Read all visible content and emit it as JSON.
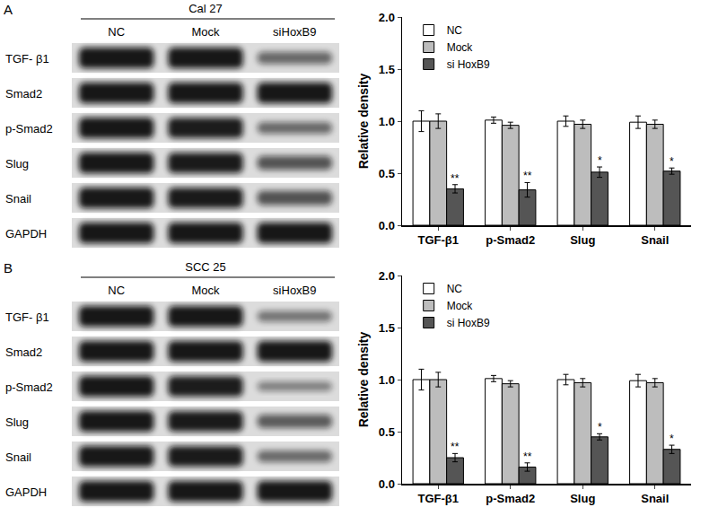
{
  "chart_data": [
    {
      "type": "bar",
      "categories": [
        "TGF-β1",
        "p-Smad2",
        "Slug",
        "Snail"
      ],
      "y_label": "Relative density",
      "ylim": [
        0,
        2
      ],
      "yticks": [
        {
          "value": 0,
          "label": "0.0"
        },
        {
          "value": 0.5,
          "label": "0.5"
        },
        {
          "value": 1,
          "label": "1.0"
        },
        {
          "value": 1.5,
          "label": "1.5"
        },
        {
          "value": 2,
          "label": "2.0"
        }
      ],
      "grid": false,
      "legend": "upper left",
      "series": [
        {
          "name": "NC",
          "color": "#ffffff",
          "values": [
            1.0,
            1.01,
            1.0,
            0.99
          ],
          "errors": [
            0.1,
            0.03,
            0.05,
            0.06
          ]
        },
        {
          "name": "Mock",
          "color": "#bdbdbd",
          "values": [
            1.0,
            0.96,
            0.97,
            0.97
          ],
          "errors": [
            0.07,
            0.03,
            0.04,
            0.04
          ]
        },
        {
          "name": "si HoxB9",
          "color": "#555555",
          "values": [
            0.35,
            0.34,
            0.51,
            0.52
          ],
          "errors": [
            0.04,
            0.07,
            0.05,
            0.03
          ],
          "significance": [
            "**",
            "**",
            "*",
            "*"
          ]
        }
      ]
    },
    {
      "type": "bar",
      "categories": [
        "TGF-β1",
        "p-Smad2",
        "Slug",
        "Snail"
      ],
      "y_label": "Relative density",
      "ylim": [
        0,
        2
      ],
      "yticks": [
        {
          "value": 0,
          "label": "0.0"
        },
        {
          "value": 0.5,
          "label": "0.5"
        },
        {
          "value": 1,
          "label": "1.0"
        },
        {
          "value": 1.5,
          "label": "1.5"
        },
        {
          "value": 2,
          "label": "2.0"
        }
      ],
      "grid": false,
      "legend": "upper left",
      "series": [
        {
          "name": "NC",
          "color": "#ffffff",
          "values": [
            1.0,
            1.01,
            1.0,
            0.99
          ],
          "errors": [
            0.1,
            0.03,
            0.05,
            0.06
          ]
        },
        {
          "name": "Mock",
          "color": "#bdbdbd",
          "values": [
            1.0,
            0.96,
            0.97,
            0.97
          ],
          "errors": [
            0.07,
            0.03,
            0.04,
            0.04
          ]
        },
        {
          "name": "si HoxB9",
          "color": "#555555",
          "values": [
            0.25,
            0.16,
            0.45,
            0.33
          ],
          "errors": [
            0.04,
            0.04,
            0.03,
            0.04
          ],
          "significance": [
            "**",
            "**",
            "*",
            "*"
          ]
        }
      ]
    }
  ],
  "blots": [
    {
      "panel": "A",
      "cell_line": "Cal 27",
      "lanes": [
        "NC",
        "Mock",
        "siHoxB9"
      ],
      "proteins": [
        "TGF- β1",
        "Smad2",
        "p-Smad2",
        "Slug",
        "Snail",
        "GAPDH"
      ]
    },
    {
      "panel": "B",
      "cell_line": "SCC 25",
      "lanes": [
        "NC",
        "Mock",
        "siHoxB9"
      ],
      "proteins": [
        "TGF- β1",
        "Smad2",
        "p-Smad2",
        "Slug",
        "Snail",
        "GAPDH"
      ]
    }
  ]
}
